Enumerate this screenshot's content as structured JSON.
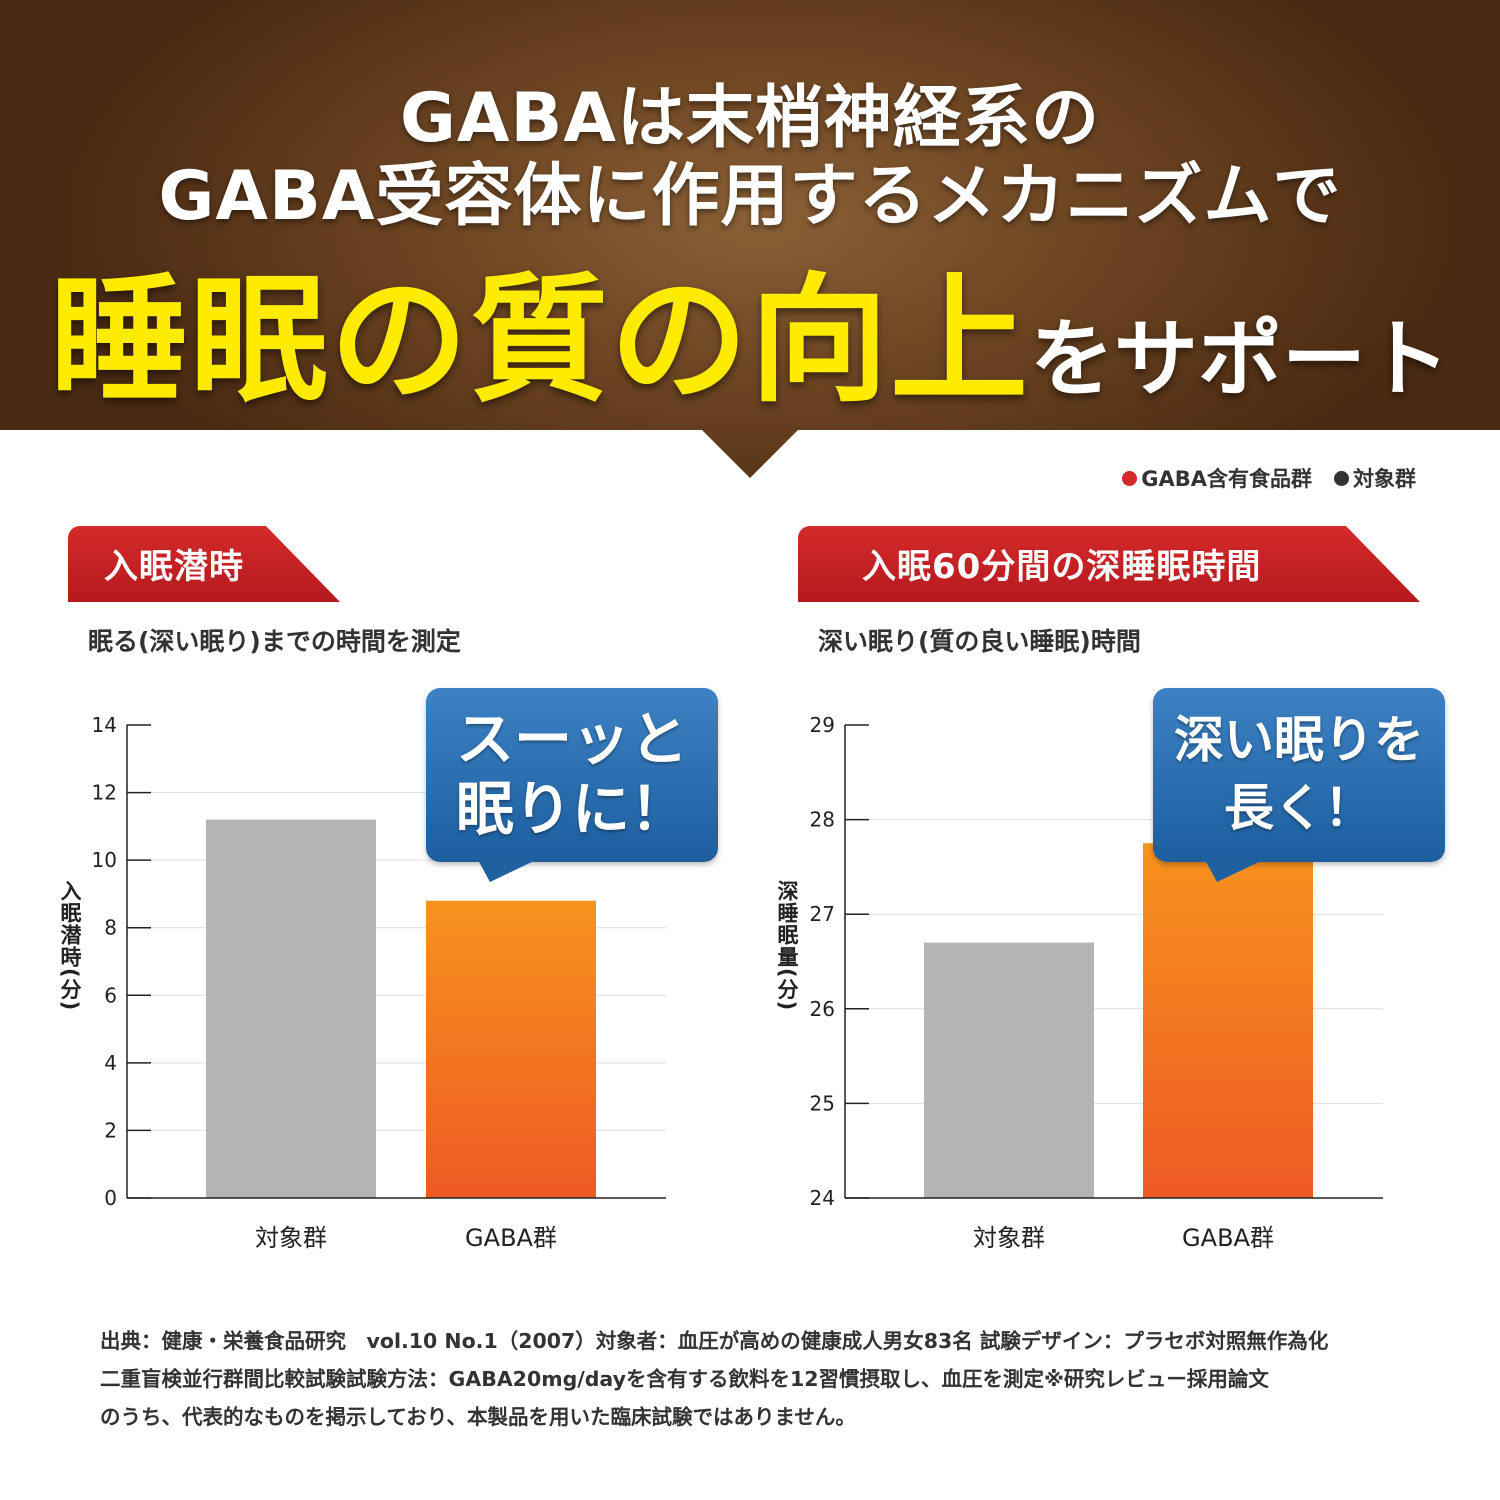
{
  "header": {
    "line1": "GABAは末梢神経系の",
    "line2": "GABA受容体に作用するメカニズムで",
    "line3_highlight": "睡眠の質の向上",
    "line3_rest": "をサポート"
  },
  "legend": [
    {
      "label": "GABA含有食品群",
      "color": "#d52a2a"
    },
    {
      "label": "対象群",
      "color": "#333333"
    }
  ],
  "colors": {
    "bar_control": "#b4b4b4",
    "bar_gaba_top": "#f7931e",
    "bar_gaba_bottom": "#ee5a24",
    "title_red": "#c4202a",
    "bubble_blue": "#2a6db0",
    "highlight_yellow": "#ffeb00"
  },
  "bubbles": {
    "left": {
      "line1": "スーッと",
      "line2": "眠りに！"
    },
    "right": {
      "line1": "深い眠りを",
      "line2": "長く！"
    }
  },
  "chart_data": [
    {
      "type": "bar",
      "title": "入眠潜時",
      "subtitle": "眠る(深い眠り)までの時間を測定",
      "ylabel": "入眠潜時(分)",
      "xlabel": "",
      "categories": [
        "対象群",
        "GABA群"
      ],
      "values": [
        11.2,
        8.8
      ],
      "ylim": [
        0,
        14
      ],
      "yticks": [
        "0",
        "2",
        "4",
        "6",
        "8",
        "10",
        "12",
        "14"
      ],
      "grid": true
    },
    {
      "type": "bar",
      "title": "入眠60分間の深睡眠時間",
      "subtitle": "深い眠り(質の良い睡眠)時間",
      "ylabel": "深睡眠量(分)",
      "xlabel": "",
      "categories": [
        "対象群",
        "GABA群"
      ],
      "values": [
        26.7,
        27.75
      ],
      "ylim": [
        24,
        29
      ],
      "yticks": [
        "24",
        "25",
        "26",
        "27",
        "28",
        "29"
      ],
      "grid": true
    }
  ],
  "footnote": {
    "line1": "出典：健康・栄養食品研究　vol.10 No.1（2007）対象者：血圧が高めの健康成人男女83名 試験デザイン：プラセボ対照無作為化",
    "line2": "二重盲検並行群間比較試験試験方法：GABA20mg/dayを含有する飲料を12習慣摂取し、血圧を測定※研究レビュー採用論文",
    "line3": "のうち、代表的なものを掲示しており、本製品を用いた臨床試験ではありません。"
  }
}
